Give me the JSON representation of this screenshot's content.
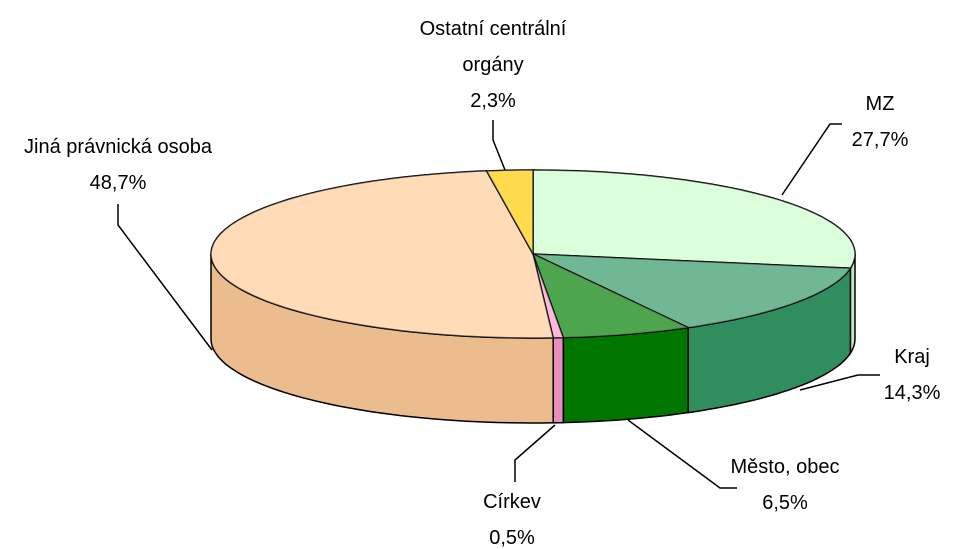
{
  "chart_data": {
    "type": "pie3d",
    "categories": [
      "MZ",
      "Kraj",
      "Město, obec",
      "Církev",
      "Jiná právnická osoba",
      "Ostatní centrální orgány"
    ],
    "values": [
      27.7,
      14.3,
      6.5,
      0.5,
      48.7,
      2.3
    ],
    "value_labels": [
      "27,7%",
      "14,3%",
      "6,5%",
      "0,5%",
      "48,7%",
      "2,3%"
    ],
    "colors": [
      "#ccffcc",
      "#339966",
      "#008000",
      "#ff99cc",
      "#ffcc99",
      "#ffcc00"
    ]
  }
}
